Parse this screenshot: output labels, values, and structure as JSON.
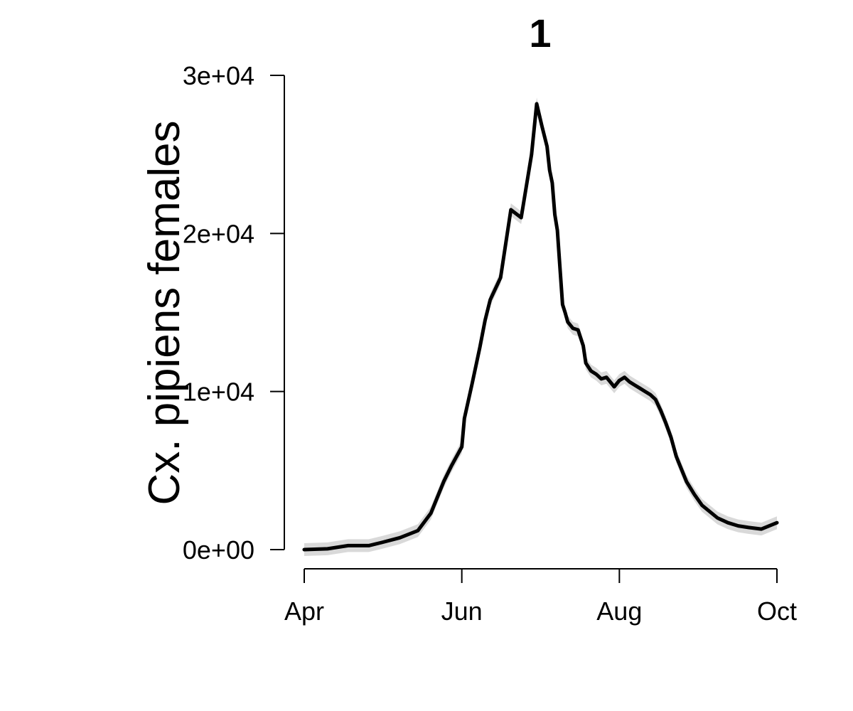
{
  "chart_data": {
    "type": "line",
    "title": "1",
    "xlabel": "",
    "ylabel": "Cx. pipiens females",
    "x_ticks": [
      "Apr",
      "Jun",
      "Aug",
      "Oct"
    ],
    "y_ticks": [
      "0e+00",
      "1e+04",
      "2e+04",
      "3e+04"
    ],
    "ylim": [
      0,
      30000
    ],
    "xlim": [
      "2000-04-01",
      "2000-10-01"
    ],
    "grid": false,
    "legend": "none",
    "colors": {
      "line": "#000000",
      "band": "#d9d9d9",
      "axis": "#000000"
    },
    "series": [
      {
        "x": [
          "2000-04-01",
          "2000-04-10",
          "2000-04-18",
          "2000-04-26",
          "2000-05-01",
          "2000-05-08",
          "2000-05-15",
          "2000-05-20",
          "2000-05-25",
          "2000-05-28",
          "2000-06-01",
          "2000-06-02",
          "2000-06-05",
          "2000-06-08",
          "2000-06-10",
          "2000-06-12",
          "2000-06-16",
          "2000-06-20",
          "2000-06-24",
          "2000-06-28",
          "2000-06-30",
          "2000-07-02",
          "2000-07-04",
          "2000-07-05",
          "2000-07-06",
          "2000-07-07",
          "2000-07-08",
          "2000-07-09",
          "2000-07-10",
          "2000-07-11",
          "2000-07-12",
          "2000-07-14",
          "2000-07-16",
          "2000-07-17",
          "2000-07-18",
          "2000-07-19",
          "2000-07-21",
          "2000-07-23",
          "2000-07-25",
          "2000-07-27",
          "2000-07-28",
          "2000-07-30",
          "2000-08-01",
          "2000-08-03",
          "2000-08-05",
          "2000-08-07",
          "2000-08-09",
          "2000-08-11",
          "2000-08-13",
          "2000-08-15",
          "2000-08-17",
          "2000-08-19",
          "2000-08-21",
          "2000-08-23",
          "2000-08-25",
          "2000-08-27",
          "2000-08-30",
          "2000-09-02",
          "2000-09-05",
          "2000-09-08",
          "2000-09-12",
          "2000-09-16",
          "2000-09-20",
          "2000-09-25",
          "2000-10-01"
        ],
        "y": [
          0,
          50,
          250,
          250,
          450,
          750,
          1200,
          2300,
          4300,
          5300,
          6500,
          8300,
          10500,
          12800,
          14500,
          15800,
          17200,
          21500,
          21000,
          25000,
          28200,
          26800,
          25500,
          24000,
          23200,
          21200,
          20200,
          17800,
          15500,
          15000,
          14400,
          14000,
          13900,
          13400,
          12900,
          11800,
          11300,
          11100,
          10800,
          10900,
          10700,
          10300,
          10700,
          10900,
          10600,
          10400,
          10200,
          10000,
          9800,
          9500,
          8800,
          8000,
          7100,
          5900,
          5100,
          4300,
          3500,
          2800,
          2400,
          2000,
          1700,
          1500,
          1400,
          1300,
          1700
        ]
      }
    ]
  }
}
